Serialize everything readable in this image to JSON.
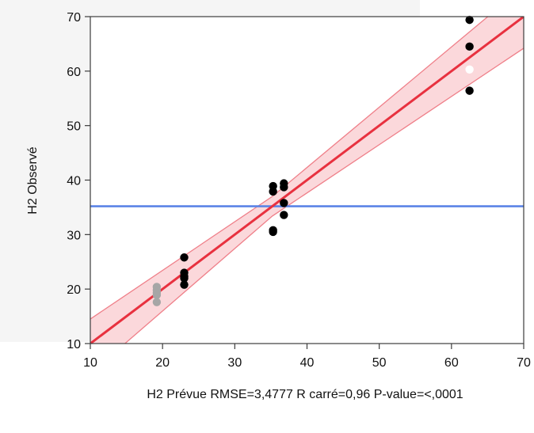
{
  "chart_data": {
    "type": "scatter",
    "xlabel": "H2 Prévue RMSE=3,4777 R carré=0,96 P-value=<,0001",
    "ylabel": "H2 Observé",
    "xlim": [
      10,
      70
    ],
    "ylim": [
      10,
      70
    ],
    "x_ticks": [
      "10",
      "20",
      "30",
      "40",
      "50",
      "60",
      "70"
    ],
    "y_ticks": [
      "10",
      "20",
      "30",
      "40",
      "50",
      "60",
      "70"
    ],
    "grid": false,
    "colors": {
      "fit_line": "#e8313f",
      "confidence_band": "#f7b8bd",
      "confidence_edge": "#ef7f89",
      "mean_line": "#5b84e6",
      "points_included": "#000000",
      "points_excluded": "#a6a6a6",
      "point_hidden": "#ffffff"
    },
    "fit_line": {
      "x": [
        10,
        70
      ],
      "y": [
        10,
        70
      ]
    },
    "confidence_band": {
      "x": [
        10,
        35.2,
        70
      ],
      "lower": [
        4.5,
        33.4,
        64.2
      ],
      "upper": [
        14.5,
        37.0,
        75.5
      ]
    },
    "mean_line": {
      "y": 35.2
    },
    "series": [
      {
        "role": "included",
        "points": [
          [
            23,
            25.8
          ],
          [
            23,
            23.0
          ],
          [
            23,
            22.3
          ],
          [
            23,
            22.0
          ],
          [
            23,
            20.8
          ],
          [
            35.3,
            38.9
          ],
          [
            35.3,
            37.9
          ],
          [
            35.3,
            30.8
          ],
          [
            35.3,
            30.5
          ],
          [
            36.8,
            39.4
          ],
          [
            36.8,
            38.7
          ],
          [
            36.8,
            35.8
          ],
          [
            36.8,
            33.6
          ],
          [
            62.5,
            69.4
          ],
          [
            62.5,
            64.5
          ],
          [
            62.5,
            56.4
          ]
        ]
      },
      {
        "role": "excluded",
        "points": [
          [
            19.2,
            20.4
          ],
          [
            19.2,
            19.8
          ],
          [
            19.2,
            19.3
          ],
          [
            19.2,
            18.9
          ],
          [
            19.2,
            17.6
          ]
        ]
      },
      {
        "role": "hidden",
        "points": [
          [
            62.5,
            60.3
          ]
        ]
      }
    ]
  }
}
